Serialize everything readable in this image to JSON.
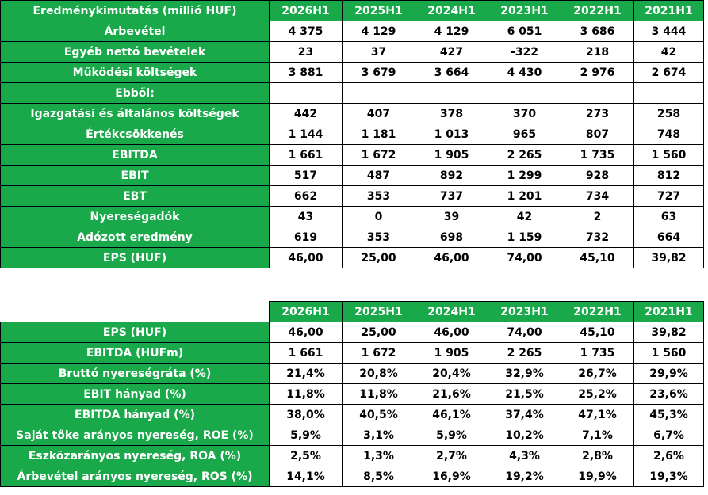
{
  "table1": {
    "header_label": "Eredménykimutatás (millió HUF)",
    "periods": [
      "2026H1",
      "2025H1",
      "2024H1",
      "2023H1",
      "2022H1",
      "2021H1"
    ],
    "rows": [
      {
        "label": "Árbevétel",
        "values": [
          "4 375",
          "4 129",
          "4 129",
          "6 051",
          "3 686",
          "3 444"
        ]
      },
      {
        "label": "Egyéb nettó bevételek",
        "values": [
          "23",
          "37",
          "427",
          "-322",
          "218",
          "42"
        ]
      },
      {
        "label": "Működési költségek",
        "values": [
          "3 881",
          "3 679",
          "3 664",
          "4 430",
          "2 976",
          "2 674"
        ]
      },
      {
        "label": "Ebből:",
        "values": [
          "",
          "",
          "",
          "",
          "",
          ""
        ]
      },
      {
        "label": "Igazgatási és általános költségek",
        "values": [
          "442",
          "407",
          "378",
          "370",
          "273",
          "258"
        ]
      },
      {
        "label": "Értékcsökkenés",
        "values": [
          "1 144",
          "1 181",
          "1 013",
          "965",
          "807",
          "748"
        ]
      },
      {
        "label": "EBITDA",
        "values": [
          "1 661",
          "1 672",
          "1 905",
          "2 265",
          "1 735",
          "1 560"
        ]
      },
      {
        "label": "EBIT",
        "values": [
          "517",
          "487",
          "892",
          "1 299",
          "928",
          "812"
        ]
      },
      {
        "label": "EBT",
        "values": [
          "662",
          "353",
          "737",
          "1 201",
          "734",
          "727"
        ]
      },
      {
        "label": "Nyereségadók",
        "values": [
          "43",
          "0",
          "39",
          "42",
          "2",
          "63"
        ]
      },
      {
        "label": "Adózott eredmény",
        "values": [
          "619",
          "353",
          "698",
          "1 159",
          "732",
          "664"
        ]
      },
      {
        "label": "EPS (HUF)",
        "values": [
          "46,00",
          "25,00",
          "46,00",
          "74,00",
          "45,10",
          "39,82"
        ]
      }
    ]
  },
  "table2": {
    "periods": [
      "2026H1",
      "2025H1",
      "2024H1",
      "2023H1",
      "2022H1",
      "2021H1"
    ],
    "rows": [
      {
        "label": "EPS (HUF)",
        "values": [
          "46,00",
          "25,00",
          "46,00",
          "74,00",
          "45,10",
          "39,82"
        ]
      },
      {
        "label": "EBITDA (HUFm)",
        "values": [
          "1 661",
          "1 672",
          "1 905",
          "2 265",
          "1 735",
          "1 560"
        ]
      },
      {
        "label": "Bruttó nyereségráta (%)",
        "values": [
          "21,4%",
          "20,8%",
          "20,4%",
          "32,9%",
          "26,7%",
          "29,9%"
        ]
      },
      {
        "label": "EBIT hányad (%)",
        "values": [
          "11,8%",
          "11,8%",
          "21,6%",
          "21,5%",
          "25,2%",
          "23,6%"
        ]
      },
      {
        "label": "EBITDA hányad (%)",
        "values": [
          "38,0%",
          "40,5%",
          "46,1%",
          "37,4%",
          "47,1%",
          "45,3%"
        ]
      },
      {
        "label": "Saját tőke arányos nyereség, ROE (%)",
        "values": [
          "5,9%",
          "3,1%",
          "5,9%",
          "10,2%",
          "7,1%",
          "6,7%"
        ]
      },
      {
        "label": "Eszközarányos nyereség, ROA (%)",
        "values": [
          "2,5%",
          "1,3%",
          "2,7%",
          "4,3%",
          "2,8%",
          "2,6%"
        ]
      },
      {
        "label": "Árbevétel arányos nyereség, ROS (%)",
        "values": [
          "14,1%",
          "8,5%",
          "16,9%",
          "19,2%",
          "19,9%",
          "19,3%"
        ]
      }
    ]
  }
}
